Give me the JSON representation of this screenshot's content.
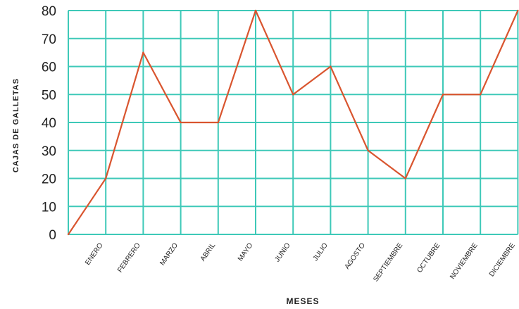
{
  "chart_data": {
    "type": "line",
    "title": "",
    "xlabel": "MESES",
    "ylabel": "CAJAS DE  GALLETAS",
    "ylim": [
      0,
      80
    ],
    "yticks": [
      0,
      10,
      20,
      30,
      40,
      50,
      60,
      70,
      80
    ],
    "grid": true,
    "categories": [
      "",
      "ENERO",
      "FEBRERO",
      "MARZO",
      "ABRIL",
      "MAYO",
      "JUNIO",
      "JULIO",
      "AGOSTO",
      "SEPTIEMBRE",
      "OCTUBRE",
      "NOVIEMBRE",
      "DICIEMBRE"
    ],
    "series": [
      {
        "values": [
          0,
          20,
          65,
          40,
          40,
          80,
          50,
          60,
          30,
          20,
          50,
          50,
          80
        ]
      }
    ],
    "colors": {
      "line": "#d9552f",
      "grid": "#3ec9b8",
      "text": "#222222"
    }
  }
}
